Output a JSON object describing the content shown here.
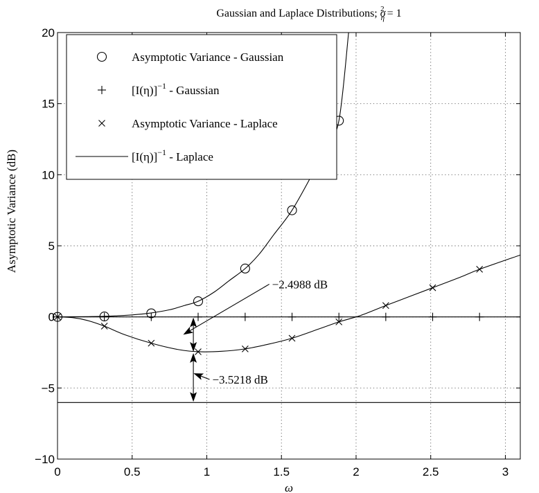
{
  "chart_data": {
    "type": "line",
    "title": "Gaussian and Laplace Distributions; σ²η = 1",
    "title_main": "Gaussian and Laplace Distributions; ",
    "title_symbol": "σ",
    "title_sup": "2",
    "title_sub": "η",
    "title_tail": " = 1",
    "xlabel": "ω",
    "ylabel": "Asymptotic Variance (dB)",
    "xlim": [
      0,
      3.1
    ],
    "ylim": [
      -10,
      20
    ],
    "xticks": [
      "0",
      "0.5",
      "1",
      "1.5",
      "2",
      "2.5",
      "3"
    ],
    "xtick_values": [
      0,
      0.5,
      1,
      1.5,
      2,
      2.5,
      3
    ],
    "yticks": [
      "−10",
      "−5",
      "0",
      "5",
      "10",
      "15",
      "20"
    ],
    "ytick_values": [
      -10,
      -5,
      0,
      5,
      10,
      15,
      20
    ],
    "grid": true,
    "legend_position": "top-left",
    "series": [
      {
        "name": "Asymptotic Variance - Gaussian",
        "marker": "circle",
        "x": [
          0,
          0.314,
          0.628,
          0.942,
          1.257,
          1.571,
          1.885
        ],
        "y": [
          0,
          0.03,
          0.25,
          1.1,
          3.4,
          7.5,
          13.8
        ]
      },
      {
        "name": "[I(η)]⁻¹ - Gaussian",
        "legend_label_main": "[I(η)]",
        "legend_label_sup": "−1",
        "legend_label_tail": " - Gaussian",
        "marker": "plus",
        "x": [
          0,
          0.314,
          0.628,
          0.942,
          1.257,
          1.571,
          1.885,
          2.199,
          2.513,
          2.827
        ],
        "y": [
          0,
          0,
          0,
          0,
          0,
          0,
          0,
          0,
          0,
          0
        ]
      },
      {
        "name": "Asymptotic Variance - Laplace",
        "marker": "x",
        "x": [
          0,
          0.314,
          0.628,
          0.942,
          1.257,
          1.571,
          1.885,
          2.199,
          2.513,
          2.827
        ],
        "y": [
          0,
          -0.65,
          -1.85,
          -2.45,
          -2.25,
          -1.5,
          -0.35,
          0.8,
          2.05,
          3.35
        ]
      },
      {
        "name": "[I(η)]⁻¹ - Laplace",
        "legend_label_main": "[I(η)]",
        "legend_label_sup": "−1",
        "legend_label_tail": " - Laplace",
        "marker": "line",
        "x": [
          0,
          3.1
        ],
        "y": [
          -6.02,
          -6.02
        ]
      }
    ],
    "curves": {
      "gaussian_curve": {
        "x": [
          0,
          0.2,
          0.314,
          0.4,
          0.5,
          0.628,
          0.75,
          0.85,
          0.942,
          1.05,
          1.15,
          1.257,
          1.35,
          1.45,
          1.571,
          1.7,
          1.8,
          1.885,
          1.95
        ],
        "y": [
          0,
          0.02,
          0.04,
          0.08,
          0.14,
          0.28,
          0.5,
          0.8,
          1.1,
          1.75,
          2.55,
          3.4,
          4.4,
          5.8,
          7.5,
          9.9,
          11.9,
          13.8,
          20
        ]
      },
      "laplace_curve": {
        "x": [
          0,
          0.1,
          0.2,
          0.314,
          0.45,
          0.628,
          0.8,
          0.942,
          1.1,
          1.257,
          1.4,
          1.571,
          1.75,
          1.885,
          2.03,
          2.199,
          2.35,
          2.513,
          2.7,
          2.827,
          3.1
        ],
        "y": [
          0,
          -0.05,
          -0.25,
          -0.65,
          -1.25,
          -1.85,
          -2.28,
          -2.45,
          -2.42,
          -2.25,
          -1.95,
          -1.5,
          -0.85,
          -0.35,
          0.1,
          0.8,
          1.4,
          2.05,
          2.8,
          3.35,
          4.35
        ]
      }
    },
    "annotations": [
      {
        "text": "−2.4988 dB",
        "x": 1.4,
        "y": 2.3,
        "arrow_to": [
          0.85,
          -1.2
        ]
      },
      {
        "text": "−3.5218 dB",
        "x": 1.0,
        "y": -4.4,
        "arrow_to": [
          0.92,
          -4.0
        ]
      }
    ],
    "dimension_arrows": [
      {
        "x": 0.91,
        "y_from": 0,
        "y_to": -2.4988
      },
      {
        "x": 0.91,
        "y_from": -2.4988,
        "y_to": -6.02
      }
    ]
  }
}
